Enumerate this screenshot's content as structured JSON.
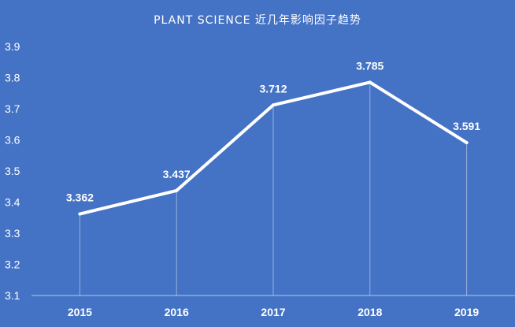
{
  "colors": {
    "background": "#4472c4",
    "line": "#ffffff",
    "text": "#ffffff",
    "drop_lines": "#ffffff"
  },
  "chart_data": {
    "type": "line",
    "title": "PLANT SCIENCE 近几年影响因子趋势",
    "xlabel": "",
    "ylabel": "",
    "categories": [
      "2015",
      "2016",
      "2017",
      "2018",
      "2019"
    ],
    "series": [
      {
        "values": [
          3.362,
          3.437,
          3.712,
          3.785,
          3.591
        ]
      }
    ],
    "data_labels": [
      "3.362",
      "3.437",
      "3.712",
      "3.785",
      "3.591"
    ],
    "ylim": [
      3.1,
      3.9
    ],
    "yticks": [
      "3.1",
      "3.2",
      "3.3",
      "3.4",
      "3.5",
      "3.6",
      "3.7",
      "3.8",
      "3.9"
    ],
    "grid": false,
    "drop_lines": true,
    "legend": "none"
  }
}
